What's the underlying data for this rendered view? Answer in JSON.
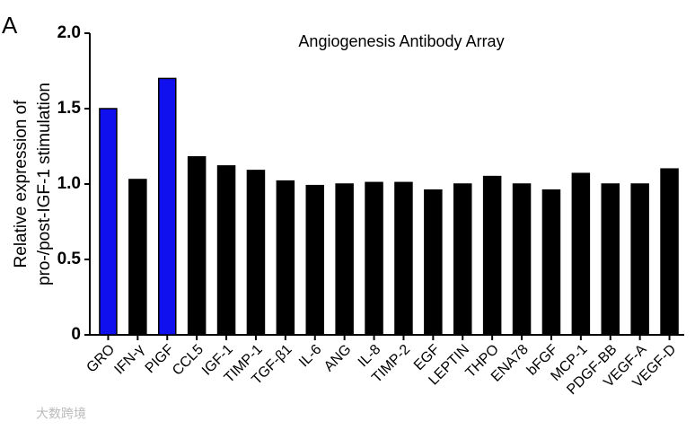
{
  "chart_data": {
    "type": "bar",
    "panel_label": "A",
    "title": "Angiogenesis Antibody Array",
    "y_label": [
      "Relative expression of",
      "pro-/post-IGF-1 stimulation"
    ],
    "categories": [
      "GRO",
      "IFN-γ",
      "PIGF",
      "CCL5",
      "IGF-1",
      "TIMP-1",
      "TGF-β1",
      "IL-6",
      "ANG",
      "IL-8",
      "TIMP-2",
      "EGF",
      "LEPTIN",
      "THPO",
      "ENA78",
      "bFGF",
      "MCP-1",
      "PDGF-BB",
      "VEGF-A",
      "VEGF-D"
    ],
    "values": [
      1.5,
      1.03,
      1.7,
      1.18,
      1.12,
      1.09,
      1.02,
      0.99,
      1.0,
      1.01,
      1.01,
      0.96,
      1.0,
      1.05,
      1.0,
      0.96,
      1.07,
      1.0,
      1.0,
      1.1
    ],
    "colors": [
      "#1010ee",
      "#000000",
      "#1010ee",
      "#000000",
      "#000000",
      "#000000",
      "#000000",
      "#000000",
      "#000000",
      "#000000",
      "#000000",
      "#000000",
      "#000000",
      "#000000",
      "#000000",
      "#000000",
      "#000000",
      "#000000",
      "#000000",
      "#000000"
    ],
    "ylim": [
      0,
      2
    ],
    "yticks": [
      0,
      0.5,
      {
        "value": 1,
        "label": "1.0"
      },
      1.5,
      {
        "value": 2,
        "label": "2.0"
      }
    ],
    "watermark": "大数跨境"
  }
}
